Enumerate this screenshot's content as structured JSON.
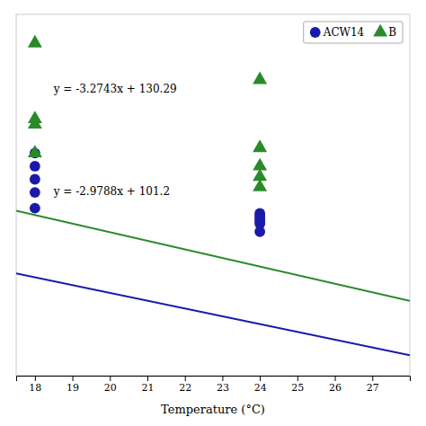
{
  "chart_data": {
    "type": "scatter",
    "xlabel": "Temperature (°C)",
    "xlim": [
      17.5,
      28.0
    ],
    "ylim": [
      10,
      148
    ],
    "xticks": [
      18,
      19,
      20,
      21,
      22,
      23,
      24,
      25,
      26,
      27
    ],
    "tick_labels": "x",
    "grid": false,
    "legend": "upper right",
    "series": [
      {
        "name": "ACW14",
        "color": "#1a1aaa",
        "marker": "circle",
        "x": [
          18,
          18,
          18,
          18,
          18,
          24,
          24,
          24,
          24,
          24,
          24
        ],
        "values": [
          95,
          90,
          85,
          80,
          74,
          72,
          71,
          70,
          69,
          68,
          65
        ]
      },
      {
        "name": "B",
        "color": "#2a8a2a",
        "marker": "triangle",
        "x": [
          18,
          18,
          18,
          18,
          24,
          24,
          24,
          24,
          24
        ],
        "values": [
          137,
          108,
          106,
          95,
          123,
          97,
          90,
          86,
          82
        ]
      },
      {
        "type": "line",
        "color": "#1a1aaa",
        "x": [
          17.5,
          28.0
        ],
        "values": [
          49.071,
          17.7936
        ]
      },
      {
        "type": "line",
        "color": "#2a8a2a",
        "x": [
          17.5,
          28.0
        ],
        "values": [
          72.98975,
          38.6096
        ]
      }
    ],
    "annotations": [
      {
        "text": "y = -3.2743x + 130.29",
        "x": 18.5,
        "y": 118
      },
      {
        "text": "y = -2.9788x + 101.2",
        "x": 18.5,
        "y": 79
      }
    ]
  }
}
